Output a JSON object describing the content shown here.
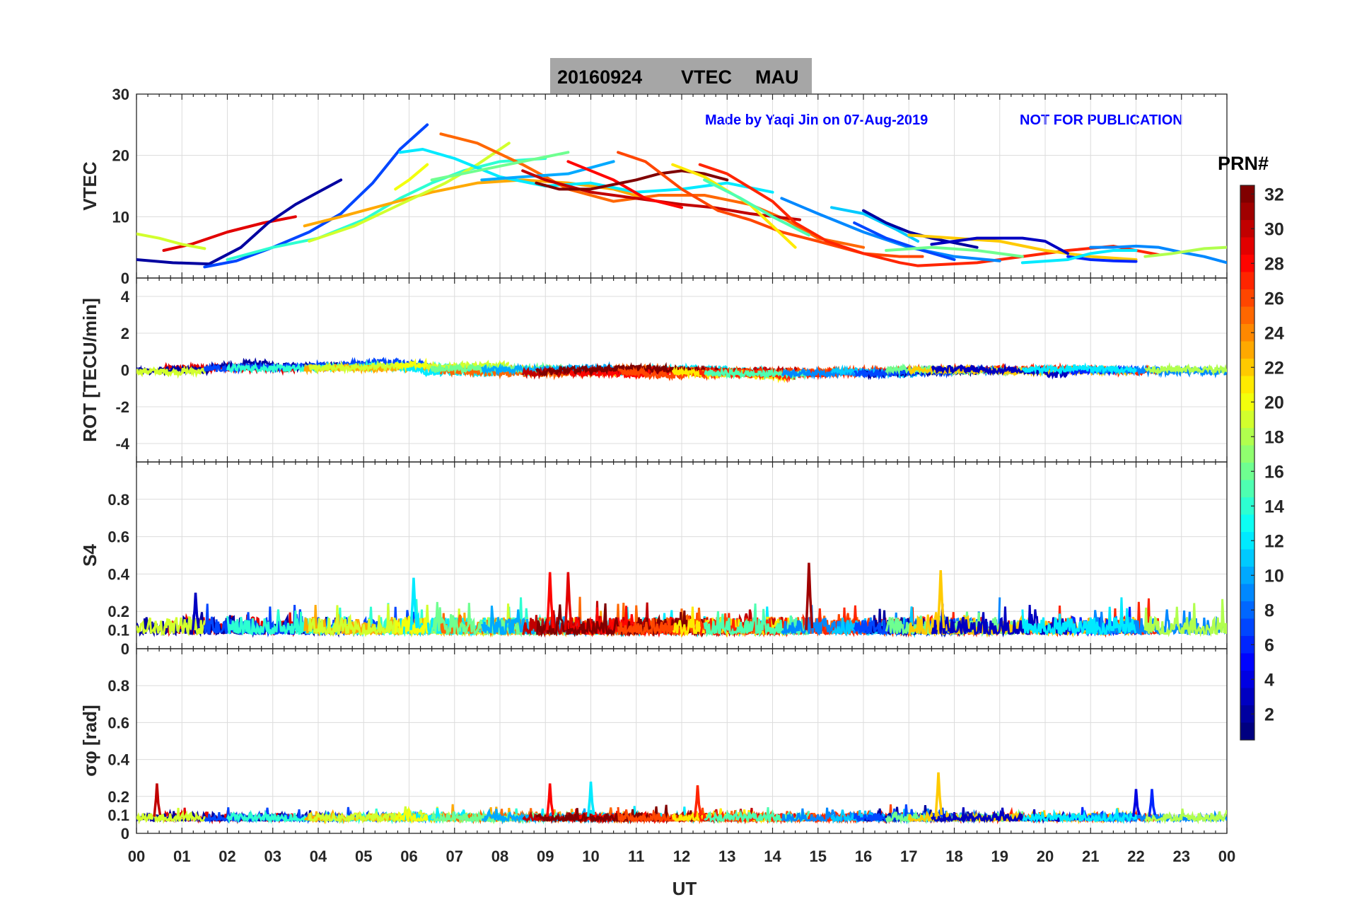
{
  "title": {
    "date": "20160924",
    "quantity": "VTEC",
    "station": "MAU"
  },
  "credit": {
    "author": "Made by Yaqi Jin on 07-Aug-2019",
    "notice": "NOT FOR PUBLICATION"
  },
  "colorbar": {
    "label": "PRN#",
    "range": [
      1,
      32
    ],
    "ticks": [
      2,
      4,
      6,
      8,
      10,
      12,
      14,
      16,
      18,
      20,
      22,
      24,
      26,
      28,
      30,
      32
    ],
    "colormap": "jet"
  },
  "colors": {
    "title_box": "#a6a6a6",
    "credit_text": "#0000ff",
    "grid": "#dcdcdc"
  },
  "chart_data": [
    {
      "type": "line",
      "id": "vtec",
      "ylabel": "VTEC",
      "ylim": [
        0,
        30
      ],
      "yticks": [
        0,
        10,
        20,
        30
      ],
      "xlim": [
        0,
        24
      ],
      "grid": true,
      "series": [
        {
          "prn": 29,
          "x": [
            0.6,
            1.2,
            2.0,
            2.8,
            3.5
          ],
          "y": [
            4.5,
            5.5,
            7.5,
            9.0,
            10.0
          ]
        },
        {
          "prn": 2,
          "x": [
            0.0,
            0.8,
            1.6,
            2.3,
            2.9,
            3.5,
            4.0,
            4.5
          ],
          "y": [
            3.0,
            2.5,
            2.3,
            5.0,
            9.0,
            12.0,
            14.0,
            16.0
          ]
        },
        {
          "prn": 19,
          "x": [
            0.0,
            0.5,
            1.0,
            1.5
          ],
          "y": [
            7.2,
            6.5,
            5.5,
            4.8
          ]
        },
        {
          "prn": 7,
          "x": [
            1.5,
            2.2,
            3.0,
            3.8,
            4.5,
            5.2,
            5.8,
            6.4
          ],
          "y": [
            1.8,
            2.8,
            5.0,
            7.5,
            10.5,
            15.5,
            21.0,
            25.0
          ]
        },
        {
          "prn": 14,
          "x": [
            2.0,
            3.0,
            4.0,
            5.0,
            5.8,
            6.5,
            7.2,
            8.0,
            9.0
          ],
          "y": [
            3.0,
            5.0,
            6.5,
            9.5,
            13.0,
            15.5,
            17.5,
            19.0,
            19.5
          ]
        },
        {
          "prn": 23,
          "x": [
            3.7,
            4.5,
            5.5,
            6.5,
            7.5,
            8.5,
            9.5,
            10.5,
            11.2
          ],
          "y": [
            8.5,
            10.0,
            12.0,
            14.0,
            15.5,
            16.0,
            15.5,
            14.5,
            13.0
          ]
        },
        {
          "prn": 19,
          "x": [
            3.8,
            4.8,
            5.8,
            6.8,
            7.5,
            8.2
          ],
          "y": [
            6.0,
            8.5,
            12.0,
            15.5,
            18.5,
            22.0
          ]
        },
        {
          "prn": 12,
          "x": [
            5.8,
            6.3,
            7.0,
            8.0,
            9.0,
            10.0,
            11.0,
            12.0,
            13.0,
            14.0
          ],
          "y": [
            20.5,
            21.0,
            19.5,
            16.5,
            15.0,
            15.5,
            14.0,
            14.5,
            15.5,
            14.0
          ]
        },
        {
          "prn": 20,
          "x": [
            5.7,
            6.0,
            6.4
          ],
          "y": [
            14.5,
            16.0,
            18.5
          ]
        },
        {
          "prn": 25,
          "x": [
            6.7,
            7.5,
            8.5,
            9.5,
            10.5,
            11.5,
            12.5,
            13.5,
            14.3,
            15.0,
            16.0
          ],
          "y": [
            23.5,
            22.0,
            18.5,
            14.5,
            12.5,
            13.5,
            13.5,
            12.0,
            9.5,
            6.5,
            5.0
          ]
        },
        {
          "prn": 16,
          "x": [
            6.5,
            7.5,
            8.5,
            9.5
          ],
          "y": [
            16.0,
            17.5,
            19.0,
            20.5
          ]
        },
        {
          "prn": 10,
          "x": [
            7.6,
            8.5,
            9.5,
            10.5
          ],
          "y": [
            16.0,
            16.5,
            17.0,
            19.0
          ]
        },
        {
          "prn": 30,
          "x": [
            8.5,
            9.0,
            10.0,
            11.0,
            12.0,
            12.7,
            13.5,
            14.6
          ],
          "y": [
            17.5,
            16.0,
            14.0,
            13.0,
            12.0,
            11.5,
            10.5,
            9.5
          ]
        },
        {
          "prn": 28,
          "x": [
            9.5,
            10.5,
            11.2,
            12.0
          ],
          "y": [
            19.0,
            16.0,
            13.0,
            11.5
          ]
        },
        {
          "prn": 32,
          "x": [
            8.8,
            9.3,
            10.0,
            11.0,
            11.5,
            12.0,
            12.5,
            13.0
          ],
          "y": [
            15.5,
            14.5,
            14.5,
            16.0,
            17.0,
            17.5,
            17.0,
            16.0
          ]
        },
        {
          "prn": 26,
          "x": [
            10.6,
            11.2,
            12.0,
            12.8,
            13.5,
            14.2,
            15.0,
            16.0,
            16.8,
            17.3
          ],
          "y": [
            20.5,
            19.0,
            14.5,
            11.0,
            9.5,
            7.5,
            6.0,
            4.0,
            3.5,
            3.5
          ]
        },
        {
          "prn": 21,
          "x": [
            11.8,
            12.5,
            13.5,
            14.5
          ],
          "y": [
            18.5,
            16.5,
            12.0,
            5.0
          ]
        },
        {
          "prn": 27,
          "x": [
            12.4,
            13.0,
            14.0,
            14.5,
            15.2,
            16.0,
            16.8,
            17.2,
            18.5,
            19.5,
            20.5,
            21.5,
            22.5
          ],
          "y": [
            18.5,
            17.0,
            12.5,
            9.0,
            6.0,
            4.0,
            2.5,
            2.0,
            2.5,
            3.5,
            4.5,
            5.2,
            3.8
          ]
        },
        {
          "prn": 15,
          "x": [
            12.5,
            13.3,
            14.0,
            14.8
          ],
          "y": [
            16.0,
            13.0,
            10.0,
            7.0
          ]
        },
        {
          "prn": 9,
          "x": [
            14.2,
            15.0,
            16.0,
            17.0,
            18.0,
            19.0
          ],
          "y": [
            13.0,
            10.5,
            7.5,
            5.0,
            3.5,
            2.8
          ]
        },
        {
          "prn": 11,
          "x": [
            15.3,
            16.0,
            16.7,
            17.2
          ],
          "y": [
            11.5,
            10.5,
            8.0,
            6.0
          ]
        },
        {
          "prn": 2,
          "x": [
            16.0,
            16.5,
            17.0,
            17.5,
            18.5
          ],
          "y": [
            11.0,
            9.0,
            7.5,
            6.5,
            5.0
          ]
        },
        {
          "prn": 7,
          "x": [
            15.8,
            16.5,
            17.3,
            18.0
          ],
          "y": [
            9.0,
            6.5,
            4.5,
            3.0
          ]
        },
        {
          "prn": 16,
          "x": [
            16.5,
            17.5,
            18.5,
            19.5
          ],
          "y": [
            4.5,
            5.0,
            4.5,
            3.5
          ]
        },
        {
          "prn": 22,
          "x": [
            17.0,
            18.0,
            19.0,
            20.0,
            21.0,
            22.0
          ],
          "y": [
            7.0,
            6.5,
            6.0,
            4.5,
            3.5,
            3.0
          ]
        },
        {
          "prn": 3,
          "x": [
            17.5,
            18.5,
            19.5,
            20.0,
            20.5
          ],
          "y": [
            5.5,
            6.5,
            6.5,
            6.0,
            4.0
          ]
        },
        {
          "prn": 6,
          "x": [
            20.5,
            21.0,
            21.5,
            22.0
          ],
          "y": [
            3.5,
            3.0,
            2.8,
            2.7
          ]
        },
        {
          "prn": 9,
          "x": [
            21.0,
            21.5,
            22.0,
            22.5,
            23.0,
            23.5,
            24.0
          ],
          "y": [
            5.0,
            5.0,
            5.2,
            5.0,
            4.2,
            3.5,
            2.5
          ]
        },
        {
          "prn": 18,
          "x": [
            22.2,
            22.8,
            23.5,
            24.0
          ],
          "y": [
            3.5,
            4.0,
            4.8,
            5.0
          ]
        },
        {
          "prn": 12,
          "x": [
            19.5,
            20.5,
            21.0,
            21.5,
            22.0
          ],
          "y": [
            2.5,
            3.0,
            4.0,
            4.5,
            4.5
          ]
        }
      ]
    },
    {
      "type": "line",
      "id": "rot",
      "ylabel": "ROT [TECU/min]",
      "ylim": [
        -5,
        5
      ],
      "yticks": [
        -4,
        -2,
        0,
        2,
        4
      ],
      "xlim": [
        0,
        24
      ],
      "grid": true,
      "description_values": "noise band centered on 0, mostly within ±0.5; spikes to ~0.8 near 04:30 and 06:30 (PRN 2/7)"
    },
    {
      "type": "line",
      "id": "s4",
      "ylabel": "S4",
      "ylim": [
        0,
        1
      ],
      "yticks": [
        0,
        0.1,
        0.2,
        0.4,
        0.6,
        0.8
      ],
      "xlim": [
        0,
        24
      ],
      "grid": true,
      "peaks": [
        {
          "x": 1.3,
          "y": 0.3,
          "prn": 3
        },
        {
          "x": 6.1,
          "y": 0.38,
          "prn": 12
        },
        {
          "x": 9.1,
          "y": 0.41,
          "prn": 28
        },
        {
          "x": 9.5,
          "y": 0.41,
          "prn": 29
        },
        {
          "x": 14.8,
          "y": 0.46,
          "prn": 31
        },
        {
          "x": 17.7,
          "y": 0.42,
          "prn": 22
        }
      ]
    },
    {
      "type": "line",
      "id": "sigma_phi",
      "ylabel": "σφ [rad]",
      "ylim": [
        0,
        1
      ],
      "yticks": [
        0,
        0.1,
        0.2,
        0.4,
        0.6,
        0.8
      ],
      "xlim": [
        0,
        24
      ],
      "grid": true,
      "peaks": [
        {
          "x": 0.45,
          "y": 0.27,
          "prn": 30
        },
        {
          "x": 9.1,
          "y": 0.27,
          "prn": 28
        },
        {
          "x": 10.0,
          "y": 0.28,
          "prn": 12
        },
        {
          "x": 12.35,
          "y": 0.26,
          "prn": 27
        },
        {
          "x": 17.65,
          "y": 0.33,
          "prn": 22
        },
        {
          "x": 22.0,
          "y": 0.24,
          "prn": 4
        },
        {
          "x": 22.35,
          "y": 0.24,
          "prn": 6
        }
      ]
    }
  ],
  "xaxis": {
    "label": "UT",
    "ticks": [
      "00",
      "01",
      "02",
      "03",
      "04",
      "05",
      "06",
      "07",
      "08",
      "09",
      "10",
      "11",
      "12",
      "13",
      "14",
      "15",
      "16",
      "17",
      "18",
      "19",
      "20",
      "21",
      "22",
      "23",
      "00"
    ]
  }
}
